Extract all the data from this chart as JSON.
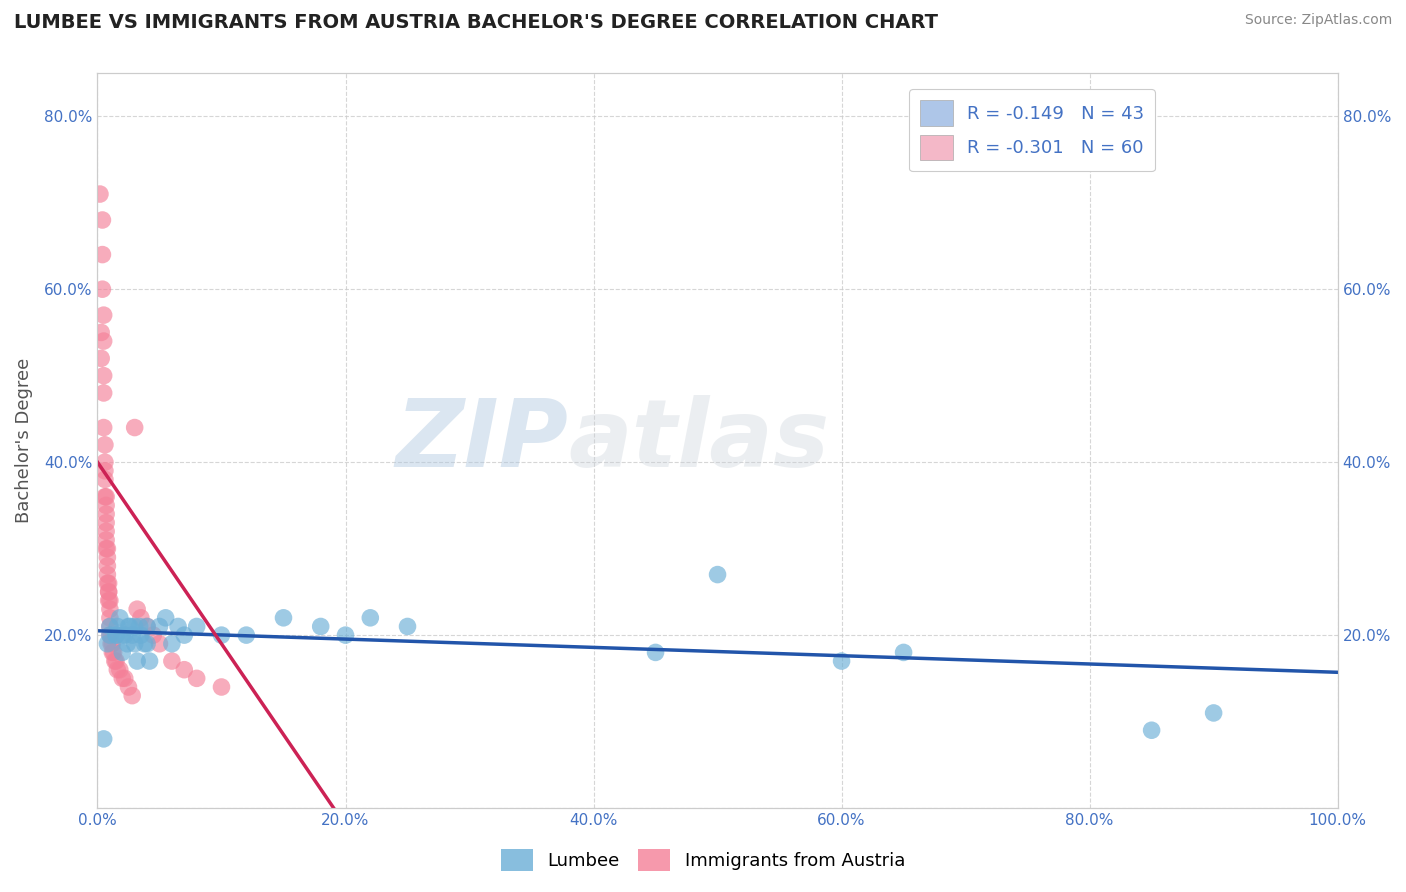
{
  "title": "LUMBEE VS IMMIGRANTS FROM AUSTRIA BACHELOR'S DEGREE CORRELATION CHART",
  "source": "Source: ZipAtlas.com",
  "ylabel": "Bachelor's Degree",
  "watermark_zip": "ZIP",
  "watermark_atlas": "atlas",
  "legend_entry1": "R = -0.149   N = 43",
  "legend_entry2": "R = -0.301   N = 60",
  "legend_color1": "#aec6e8",
  "legend_color2": "#f4b8c8",
  "bottom_legend": [
    "Lumbee",
    "Immigrants from Austria"
  ],
  "lumbee_color": "#6aaed6",
  "austria_color": "#f48098",
  "xlim": [
    0.0,
    1.0
  ],
  "ylim": [
    0.0,
    0.85
  ],
  "xticks": [
    0.0,
    0.2,
    0.4,
    0.6,
    0.8,
    1.0
  ],
  "yticks": [
    0.0,
    0.2,
    0.4,
    0.6,
    0.8
  ],
  "xticklabels": [
    "0.0%",
    "20.0%",
    "40.0%",
    "60.0%",
    "80.0%",
    "100.0%"
  ],
  "yticklabels_left": [
    "",
    "20.0%",
    "40.0%",
    "60.0%",
    "80.0%"
  ],
  "yticklabels_right": [
    "",
    "20.0%",
    "40.0%",
    "60.0%",
    "80.0%"
  ],
  "background_color": "#ffffff",
  "grid_color": "#cccccc",
  "title_color": "#222222",
  "axis_label_color": "#555555",
  "tick_color": "#4472c4",
  "lum_line_color": "#2255aa",
  "aus_line_color": "#cc2255",
  "aus_line_intercept": 0.4,
  "aus_line_slope": -2.1,
  "lum_line_intercept": 0.205,
  "lum_line_slope": -0.048,
  "aus_line_x_end": 0.3,
  "lumbee_x": [
    0.005,
    0.008,
    0.01,
    0.01,
    0.015,
    0.015,
    0.016,
    0.018,
    0.02,
    0.02,
    0.022,
    0.024,
    0.025,
    0.026,
    0.028,
    0.03,
    0.03,
    0.032,
    0.034,
    0.035,
    0.038,
    0.04,
    0.04,
    0.042,
    0.05,
    0.055,
    0.06,
    0.065,
    0.07,
    0.08,
    0.1,
    0.12,
    0.15,
    0.18,
    0.2,
    0.22,
    0.25,
    0.45,
    0.5,
    0.6,
    0.65,
    0.85,
    0.9
  ],
  "lumbee_y": [
    0.08,
    0.19,
    0.2,
    0.21,
    0.2,
    0.2,
    0.21,
    0.22,
    0.18,
    0.2,
    0.2,
    0.19,
    0.21,
    0.21,
    0.2,
    0.21,
    0.19,
    0.17,
    0.21,
    0.2,
    0.19,
    0.21,
    0.19,
    0.17,
    0.21,
    0.22,
    0.19,
    0.21,
    0.2,
    0.21,
    0.2,
    0.2,
    0.22,
    0.21,
    0.2,
    0.22,
    0.21,
    0.18,
    0.27,
    0.17,
    0.18,
    0.09,
    0.11
  ],
  "austria_x": [
    0.002,
    0.003,
    0.003,
    0.004,
    0.004,
    0.004,
    0.005,
    0.005,
    0.005,
    0.005,
    0.005,
    0.006,
    0.006,
    0.006,
    0.006,
    0.006,
    0.007,
    0.007,
    0.007,
    0.007,
    0.007,
    0.007,
    0.007,
    0.008,
    0.008,
    0.008,
    0.008,
    0.008,
    0.009,
    0.009,
    0.009,
    0.009,
    0.01,
    0.01,
    0.01,
    0.01,
    0.01,
    0.011,
    0.011,
    0.012,
    0.012,
    0.013,
    0.014,
    0.015,
    0.016,
    0.018,
    0.02,
    0.022,
    0.025,
    0.028,
    0.03,
    0.032,
    0.035,
    0.04,
    0.045,
    0.05,
    0.06,
    0.07,
    0.08,
    0.1
  ],
  "austria_y": [
    0.71,
    0.55,
    0.52,
    0.68,
    0.64,
    0.6,
    0.57,
    0.54,
    0.5,
    0.48,
    0.44,
    0.42,
    0.4,
    0.39,
    0.38,
    0.36,
    0.36,
    0.35,
    0.34,
    0.33,
    0.32,
    0.31,
    0.3,
    0.3,
    0.29,
    0.28,
    0.27,
    0.26,
    0.26,
    0.25,
    0.25,
    0.24,
    0.24,
    0.23,
    0.22,
    0.21,
    0.2,
    0.2,
    0.19,
    0.19,
    0.18,
    0.18,
    0.17,
    0.17,
    0.16,
    0.16,
    0.15,
    0.15,
    0.14,
    0.13,
    0.44,
    0.23,
    0.22,
    0.21,
    0.2,
    0.19,
    0.17,
    0.16,
    0.15,
    0.14
  ]
}
